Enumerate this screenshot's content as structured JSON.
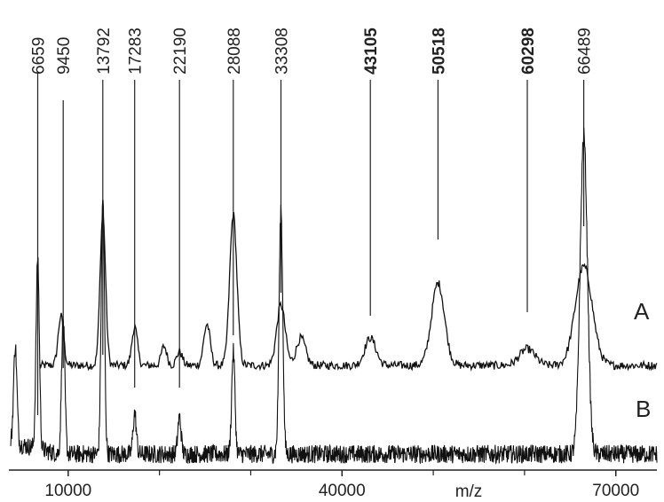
{
  "chart_data": {
    "type": "line",
    "xlabel": "m/z",
    "xlim": [
      3500,
      74500
    ],
    "x_ticks": [
      10000,
      40000,
      70000
    ],
    "x_minor_ticks": [
      20000,
      30000,
      50000,
      60000
    ],
    "grid": false,
    "peak_markers": [
      {
        "mz": 6659,
        "label": "6659",
        "bold": false
      },
      {
        "mz": 9450,
        "label": "9450",
        "bold": false
      },
      {
        "mz": 13792,
        "label": "13792",
        "bold": false
      },
      {
        "mz": 17283,
        "label": "17283",
        "bold": false
      },
      {
        "mz": 22190,
        "label": "22190",
        "bold": false
      },
      {
        "mz": 28088,
        "label": "28088",
        "bold": false
      },
      {
        "mz": 33308,
        "label": "33308",
        "bold": false
      },
      {
        "mz": 43105,
        "label": "43105",
        "bold": true
      },
      {
        "mz": 50518,
        "label": "50518",
        "bold": true
      },
      {
        "mz": 60298,
        "label": "60298",
        "bold": true
      },
      {
        "mz": 66489,
        "label": "66489",
        "bold": false
      }
    ],
    "series": [
      {
        "name": "A",
        "baseline": 0.28,
        "peaks": [
          {
            "mz": 9200,
            "height": 0.18
          },
          {
            "mz": 13792,
            "height": 0.55
          },
          {
            "mz": 17283,
            "height": 0.14
          },
          {
            "mz": 20500,
            "height": 0.07
          },
          {
            "mz": 22190,
            "height": 0.05
          },
          {
            "mz": 25200,
            "height": 0.15
          },
          {
            "mz": 28088,
            "height": 0.55
          },
          {
            "mz": 33308,
            "height": 0.22
          },
          {
            "mz": 35500,
            "height": 0.1
          },
          {
            "mz": 43105,
            "height": 0.1
          },
          {
            "mz": 50518,
            "height": 0.3
          },
          {
            "mz": 60298,
            "height": 0.06
          },
          {
            "mz": 66489,
            "height": 0.36
          }
        ]
      },
      {
        "name": "B",
        "baseline": 0.05,
        "peaks": [
          {
            "mz": 4200,
            "height": 0.24
          },
          {
            "mz": 6659,
            "height": 0.47
          },
          {
            "mz": 9450,
            "height": 0.33
          },
          {
            "mz": 13792,
            "height": 0.63
          },
          {
            "mz": 17283,
            "height": 0.1
          },
          {
            "mz": 22190,
            "height": 0.09
          },
          {
            "mz": 28088,
            "height": 0.25
          },
          {
            "mz": 33308,
            "height": 0.6
          },
          {
            "mz": 66489,
            "height": 0.78
          }
        ]
      }
    ]
  }
}
